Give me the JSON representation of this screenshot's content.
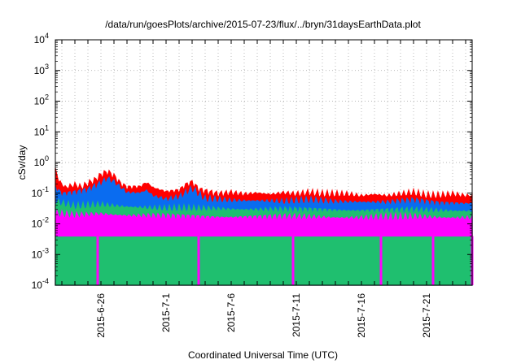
{
  "chart_data": {
    "type": "area",
    "title": "/data/run/goesPlots/archive/2015-07-23/flux/../bryn/31daysEarthData.plot",
    "xlabel": "Coordinated Universal Time (UTC)",
    "ylabel": "cSv/day",
    "x_range": [
      "2015-06-22T12:00",
      "2015-07-24T12:00"
    ],
    "y_scale": "log",
    "ylim": [
      0.0001,
      10000
    ],
    "grid": true,
    "x_ticks": [
      "2015-6-26",
      "2015-7-1",
      "2015-7-6",
      "2015-7-11",
      "2015-7-16",
      "2015-7-21"
    ],
    "y_ticks": [
      {
        "value": 0.0001,
        "base": "10",
        "exp": "-4"
      },
      {
        "value": 0.001,
        "base": "10",
        "exp": "-3"
      },
      {
        "value": 0.01,
        "base": "10",
        "exp": "-2"
      },
      {
        "value": 0.1,
        "base": "10",
        "exp": "-1"
      },
      {
        "value": 1,
        "base": "10",
        "exp": "0"
      },
      {
        "value": 10,
        "base": "10",
        "exp": "1"
      },
      {
        "value": 100,
        "base": "10",
        "exp": "2"
      },
      {
        "value": 1000,
        "base": "10",
        "exp": "3"
      },
      {
        "value": 10000,
        "base": "10",
        "exp": "4"
      }
    ],
    "series": [
      {
        "color": "#ff0000",
        "points": [
          [
            "2015-06-22T12:00",
            0.6
          ],
          [
            "2015-06-22T18:00",
            0.25
          ],
          [
            "2015-06-23T06:00",
            0.15
          ],
          [
            "2015-06-24T00:00",
            0.18
          ],
          [
            "2015-06-24T12:00",
            0.15
          ],
          [
            "2015-06-25T00:00",
            0.2
          ],
          [
            "2015-06-25T12:00",
            0.25
          ],
          [
            "2015-06-26T00:00",
            0.38
          ],
          [
            "2015-06-26T12:00",
            0.48
          ],
          [
            "2015-06-27T00:00",
            0.35
          ],
          [
            "2015-06-27T12:00",
            0.2
          ],
          [
            "2015-06-28T00:00",
            0.15
          ],
          [
            "2015-06-29T00:00",
            0.16
          ],
          [
            "2015-06-29T12:00",
            0.22
          ],
          [
            "2015-06-30T00:00",
            0.15
          ],
          [
            "2015-07-01T00:00",
            0.11
          ],
          [
            "2015-07-02T00:00",
            0.12
          ],
          [
            "2015-07-02T12:00",
            0.18
          ],
          [
            "2015-07-03T00:00",
            0.22
          ],
          [
            "2015-07-03T12:00",
            0.13
          ],
          [
            "2015-07-04T00:00",
            0.11
          ],
          [
            "2015-07-05T00:00",
            0.09
          ],
          [
            "2015-07-06T00:00",
            0.1
          ],
          [
            "2015-07-07T00:00",
            0.09
          ],
          [
            "2015-07-08T00:00",
            0.1
          ],
          [
            "2015-07-09T00:00",
            0.09
          ],
          [
            "2015-07-10T00:00",
            0.1
          ],
          [
            "2015-07-11T00:00",
            0.09
          ],
          [
            "2015-07-12T00:00",
            0.1
          ],
          [
            "2015-07-13T00:00",
            0.09
          ],
          [
            "2015-07-14T00:00",
            0.09
          ],
          [
            "2015-07-15T00:00",
            0.09
          ],
          [
            "2015-07-16T00:00",
            0.08
          ],
          [
            "2015-07-17T00:00",
            0.09
          ],
          [
            "2015-07-18T00:00",
            0.08
          ],
          [
            "2015-07-19T00:00",
            0.09
          ],
          [
            "2015-07-20T00:00",
            0.1
          ],
          [
            "2015-07-21T00:00",
            0.08
          ],
          [
            "2015-07-22T00:00",
            0.08
          ],
          [
            "2015-07-23T00:00",
            0.09
          ],
          [
            "2015-07-24T00:00",
            0.08
          ],
          [
            "2015-07-24T12:00",
            0.08
          ]
        ]
      },
      {
        "color": "#0a6cf0",
        "points": [
          [
            "2015-06-22T12:00",
            0.15
          ],
          [
            "2015-06-23T00:00",
            0.09
          ],
          [
            "2015-06-24T00:00",
            0.1
          ],
          [
            "2015-06-25T00:00",
            0.12
          ],
          [
            "2015-06-26T00:00",
            0.2
          ],
          [
            "2015-06-26T12:00",
            0.28
          ],
          [
            "2015-06-27T00:00",
            0.22
          ],
          [
            "2015-06-28T00:00",
            0.1
          ],
          [
            "2015-06-29T00:00",
            0.1
          ],
          [
            "2015-06-29T12:00",
            0.12
          ],
          [
            "2015-06-30T00:00",
            0.08
          ],
          [
            "2015-07-01T00:00",
            0.06
          ],
          [
            "2015-07-02T00:00",
            0.07
          ],
          [
            "2015-07-03T00:00",
            0.13
          ],
          [
            "2015-07-04T00:00",
            0.06
          ],
          [
            "2015-07-06T00:00",
            0.055
          ],
          [
            "2015-07-08T00:00",
            0.055
          ],
          [
            "2015-07-10T00:00",
            0.05
          ],
          [
            "2015-07-12T00:00",
            0.055
          ],
          [
            "2015-07-14T00:00",
            0.05
          ],
          [
            "2015-07-16T00:00",
            0.05
          ],
          [
            "2015-07-18T00:00",
            0.048
          ],
          [
            "2015-07-20T00:00",
            0.055
          ],
          [
            "2015-07-22T00:00",
            0.045
          ],
          [
            "2015-07-24T12:00",
            0.045
          ]
        ]
      },
      {
        "color": "#1fbf6f",
        "points": [
          [
            "2015-06-22T12:00",
            0.05
          ],
          [
            "2015-06-24T00:00",
            0.035
          ],
          [
            "2015-06-26T00:00",
            0.04
          ],
          [
            "2015-06-28T00:00",
            0.035
          ],
          [
            "2015-07-01T00:00",
            0.03
          ],
          [
            "2015-07-04T00:00",
            0.03
          ],
          [
            "2015-07-08T00:00",
            0.028
          ],
          [
            "2015-07-12T00:00",
            0.028
          ],
          [
            "2015-07-16T00:00",
            0.026
          ],
          [
            "2015-07-20T00:00",
            0.027
          ],
          [
            "2015-07-24T12:00",
            0.025
          ]
        ]
      },
      {
        "color": "#ff00ff",
        "points": [
          [
            "2015-06-22T12:00",
            0.02
          ],
          [
            "2015-06-24T00:00",
            0.018
          ],
          [
            "2015-06-26T00:00",
            0.02
          ],
          [
            "2015-06-28T00:00",
            0.018
          ],
          [
            "2015-07-01T00:00",
            0.017
          ],
          [
            "2015-07-04T00:00",
            0.016
          ],
          [
            "2015-07-08T00:00",
            0.016
          ],
          [
            "2015-07-12T00:00",
            0.016
          ],
          [
            "2015-07-16T00:00",
            0.015
          ],
          [
            "2015-07-20T00:00",
            0.016
          ],
          [
            "2015-07-24T12:00",
            0.015
          ]
        ],
        "lower": 0.004,
        "dropouts": [
          "2015-06-25T18:00",
          "2015-07-03T12:00",
          "2015-07-10T18:00",
          "2015-07-17T12:00",
          "2015-07-21T12:00",
          "2015-07-24T12:00"
        ]
      }
    ]
  }
}
